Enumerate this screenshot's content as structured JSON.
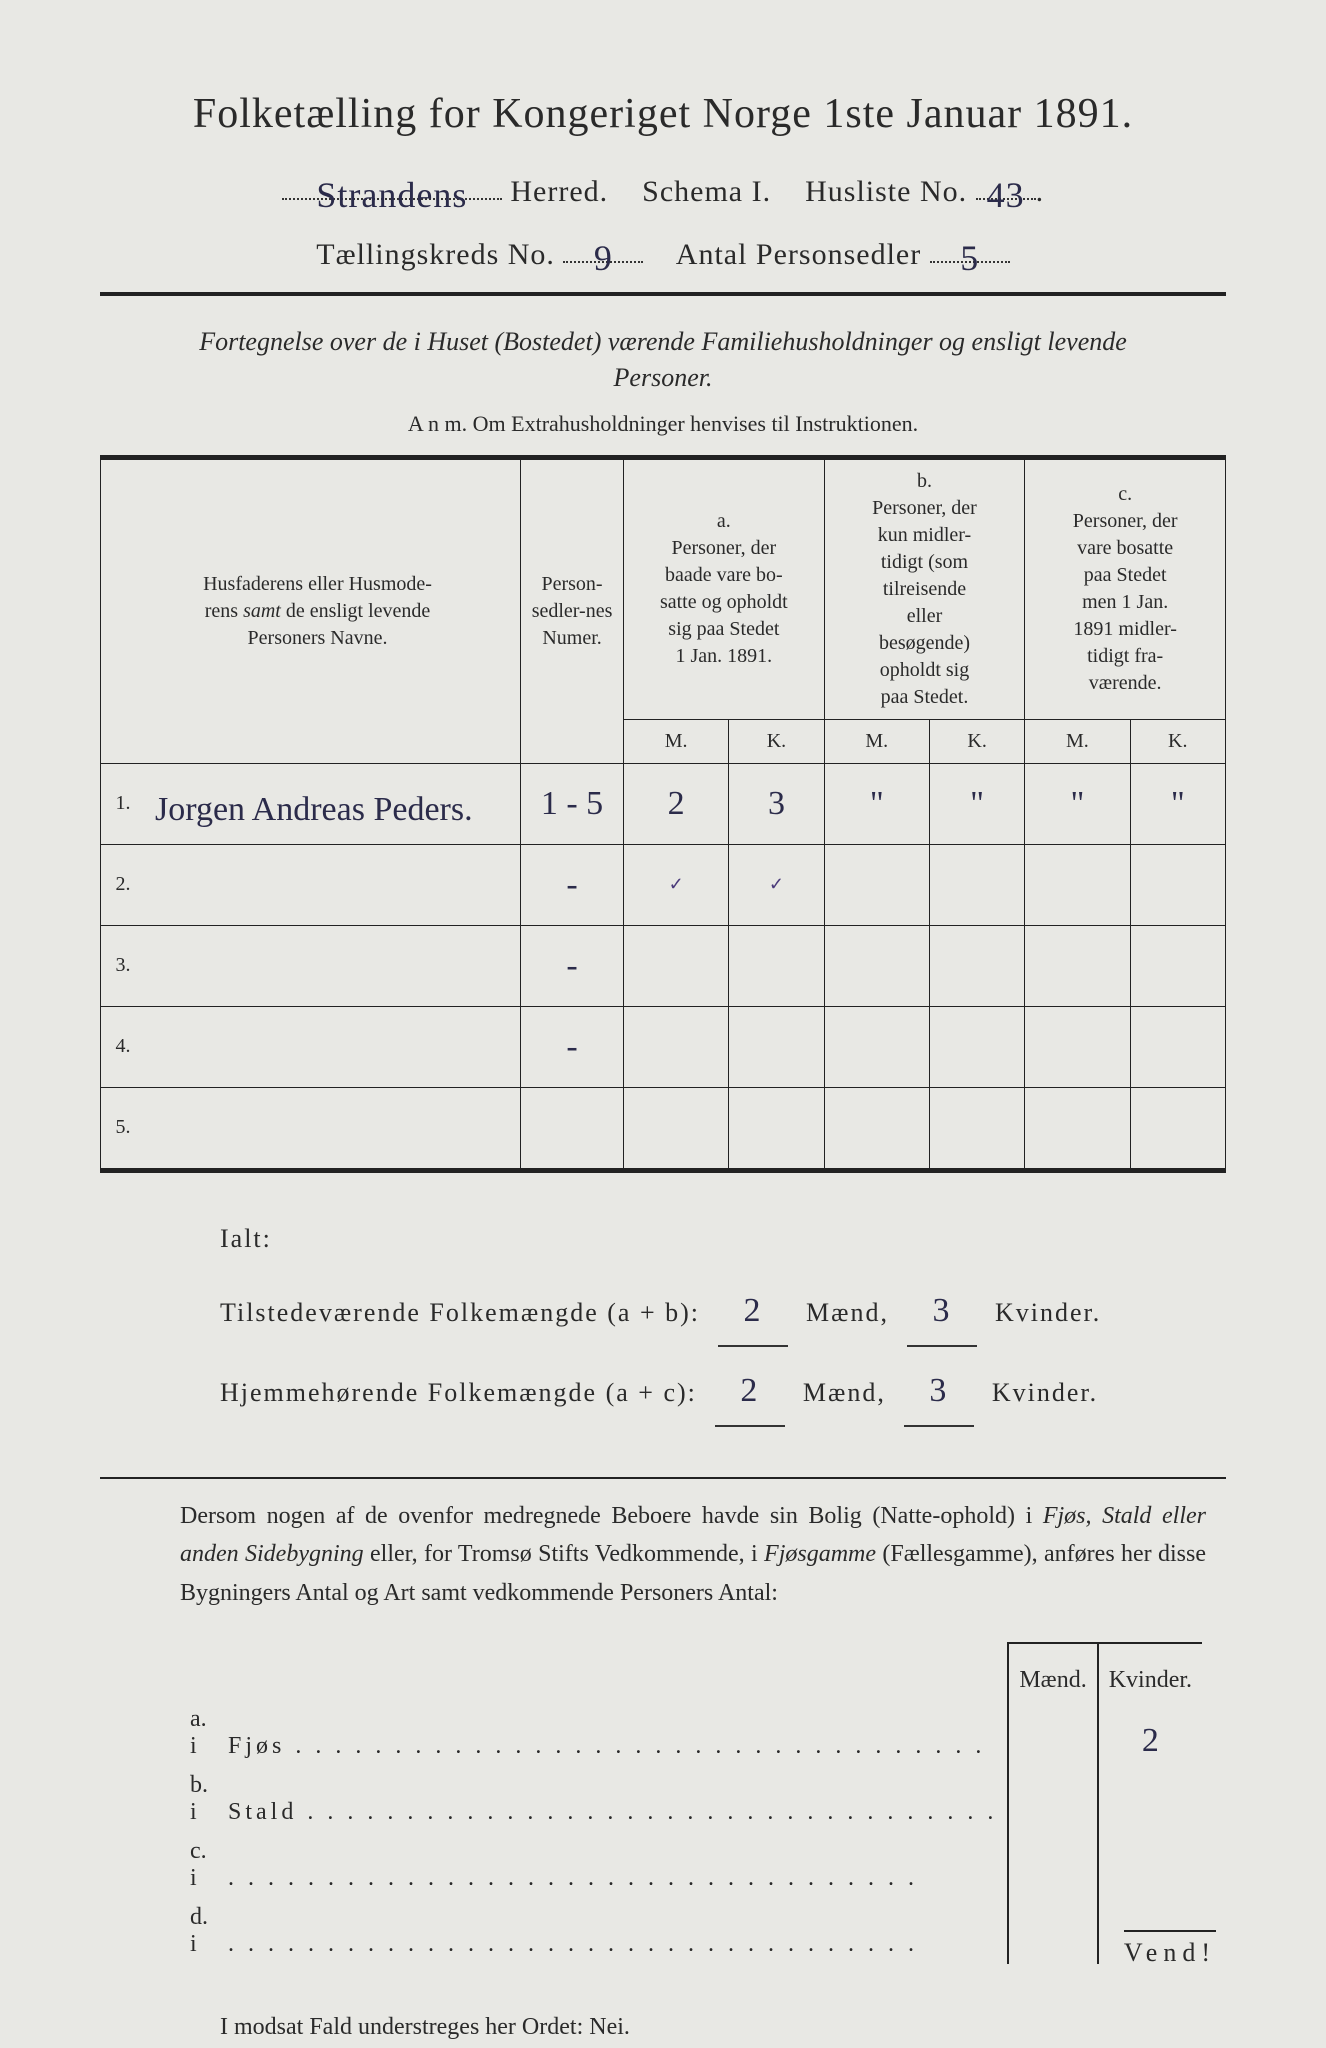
{
  "title": "Folketælling for Kongeriget Norge 1ste Januar 1891.",
  "header": {
    "herred_value": "Strandens",
    "herred_label": "Herred.",
    "schema_label": "Schema I.",
    "husliste_label": "Husliste No.",
    "husliste_value": "43",
    "kreds_label": "Tællingskreds No.",
    "kreds_value": "9",
    "antal_label": "Antal Personsedler",
    "antal_value": "5"
  },
  "subtitle": "Fortegnelse over de i Huset (Bostedet) værende Familiehusholdninger og ensligt levende Personer.",
  "anm": "A n m.  Om Extrahusholdninger henvises til Instruktionen.",
  "table": {
    "head_names": "Husfaderens eller Husmoderens samt de ensligt levende Personers Navne.",
    "head_numer": "Person-sedler-nes Numer.",
    "col_a_top": "a.",
    "col_a": "Personer, der baade vare bosatte og opholdt sig paa Stedet 1 Jan. 1891.",
    "col_b_top": "b.",
    "col_b": "Personer, der kun midler-tidigt (som tilreisende eller besøgende) opholdt sig paa Stedet.",
    "col_c_top": "c.",
    "col_c": "Personer, der vare bosatte paa Stedet men 1 Jan. 1891 midler-tidigt fra-værende.",
    "m": "M.",
    "k": "K.",
    "rows": [
      {
        "n": "1.",
        "name": "Jorgen Andreas Peders.",
        "numer": "1 - 5",
        "am": "2",
        "ak": "3",
        "bm": "\"",
        "bk": "\"",
        "cm": "\"",
        "ck": "\""
      },
      {
        "n": "2.",
        "name": "",
        "numer": "-",
        "am": "✓",
        "ak": "✓",
        "bm": "",
        "bk": "",
        "cm": "",
        "ck": ""
      },
      {
        "n": "3.",
        "name": "",
        "numer": "-",
        "am": "",
        "ak": "",
        "bm": "",
        "bk": "",
        "cm": "",
        "ck": ""
      },
      {
        "n": "4.",
        "name": "",
        "numer": "-",
        "am": "",
        "ak": "",
        "bm": "",
        "bk": "",
        "cm": "",
        "ck": ""
      },
      {
        "n": "5.",
        "name": "",
        "numer": "",
        "am": "",
        "ak": "",
        "bm": "",
        "bk": "",
        "cm": "",
        "ck": ""
      }
    ]
  },
  "ialt": {
    "label": "Ialt:",
    "line1_pre": "Tilstedeværende Folkemængde (a + b):",
    "line2_pre": "Hjemmehørende Folkemængde (a + c):",
    "maend": "Mænd,",
    "kvinder": "Kvinder.",
    "l1_m": "2",
    "l1_k": "3",
    "l2_m": "2",
    "l2_k": "3"
  },
  "para": "Dersom nogen af de ovenfor medregnede Beboere havde sin Bolig (Natte-ophold) i Fjøs, Stald eller anden Sidebygning eller, for Tromsø Stifts Vedkommende, i Fjøsgamme (Fællesgamme), anføres her disse Bygningers Antal og Art samt vedkommende Personers Antal:",
  "fjos": {
    "head_m": "Mænd.",
    "head_k": "Kvinder.",
    "rows": [
      {
        "l": "a.  i",
        "label": "Fjøs",
        "m": "",
        "k": "2"
      },
      {
        "l": "b.  i",
        "label": "Stald",
        "m": "",
        "k": ""
      },
      {
        "l": "c.  i",
        "label": "",
        "m": "",
        "k": ""
      },
      {
        "l": "d.  i",
        "label": "",
        "m": "",
        "k": ""
      }
    ]
  },
  "modsat": "I modsat Fald understreges her Ordet: Nei.",
  "vend": "Vend!"
}
